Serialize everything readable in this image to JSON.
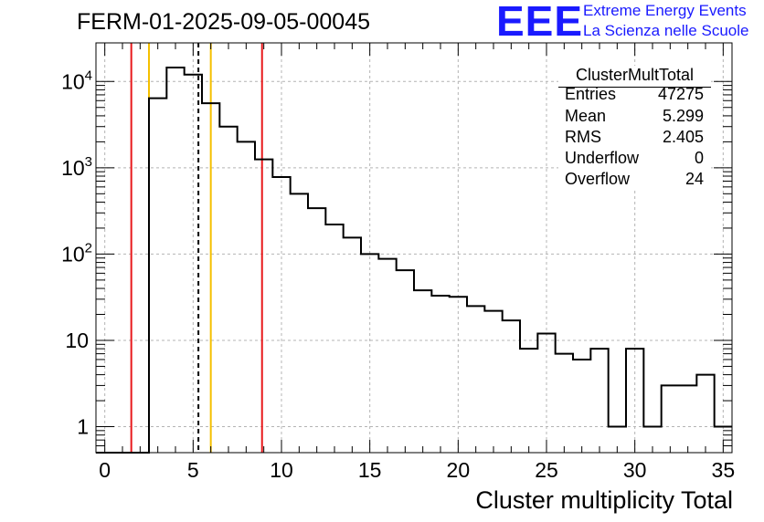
{
  "header": {
    "title": "FERM-01-2025-09-05-00045",
    "logo_text": "EEE",
    "logo_line1": "Extreme Energy Events",
    "logo_line2": "La Scienza nelle Scuole"
  },
  "stats": {
    "name": "ClusterMultTotal",
    "rows": [
      {
        "key": "Entries",
        "value": "47275"
      },
      {
        "key": "Mean",
        "value": "5.299"
      },
      {
        "key": "RMS",
        "value": "2.405"
      },
      {
        "key": "Underflow",
        "value": "0"
      },
      {
        "key": "Overflow",
        "value": "24"
      }
    ]
  },
  "colors": {
    "logo": "#1a1aff",
    "red_line": "#e8191c",
    "yellow_line": "#f5c000",
    "grid": "#b4b4b4"
  },
  "chart_data": {
    "type": "histogram",
    "title": "FERM-01-2025-09-05-00045",
    "xlabel": "Cluster multiplicity Total",
    "ylabel": "",
    "y_scale": "log",
    "xlim": [
      -0.5,
      35.5
    ],
    "ylim": [
      0.5,
      28000
    ],
    "grid": true,
    "x_ticks": [
      0,
      5,
      10,
      15,
      20,
      25,
      30,
      35
    ],
    "y_ticks": [
      {
        "value": 1,
        "label": "1"
      },
      {
        "value": 10,
        "label": "10"
      },
      {
        "value": 100,
        "label": "10",
        "exp": "2"
      },
      {
        "value": 1000,
        "label": "10",
        "exp": "3"
      },
      {
        "value": 10000,
        "label": "10",
        "exp": "4"
      }
    ],
    "bins": [
      {
        "x": 0,
        "count": 0
      },
      {
        "x": 1,
        "count": 0
      },
      {
        "x": 2,
        "count": 0
      },
      {
        "x": 3,
        "count": 6400
      },
      {
        "x": 4,
        "count": 14500
      },
      {
        "x": 5,
        "count": 12000
      },
      {
        "x": 6,
        "count": 5600
      },
      {
        "x": 7,
        "count": 3000
      },
      {
        "x": 8,
        "count": 2000
      },
      {
        "x": 9,
        "count": 1250
      },
      {
        "x": 10,
        "count": 780
      },
      {
        "x": 11,
        "count": 500
      },
      {
        "x": 12,
        "count": 340
      },
      {
        "x": 13,
        "count": 220
      },
      {
        "x": 14,
        "count": 155
      },
      {
        "x": 15,
        "count": 100
      },
      {
        "x": 16,
        "count": 88
      },
      {
        "x": 17,
        "count": 65
      },
      {
        "x": 18,
        "count": 38
      },
      {
        "x": 19,
        "count": 33
      },
      {
        "x": 20,
        "count": 32
      },
      {
        "x": 21,
        "count": 25
      },
      {
        "x": 22,
        "count": 22
      },
      {
        "x": 23,
        "count": 17
      },
      {
        "x": 24,
        "count": 8
      },
      {
        "x": 25,
        "count": 12
      },
      {
        "x": 26,
        "count": 7
      },
      {
        "x": 27,
        "count": 6
      },
      {
        "x": 28,
        "count": 8
      },
      {
        "x": 29,
        "count": 1
      },
      {
        "x": 30,
        "count": 8
      },
      {
        "x": 31,
        "count": 1
      },
      {
        "x": 32,
        "count": 3
      },
      {
        "x": 33,
        "count": 3
      },
      {
        "x": 34,
        "count": 4
      },
      {
        "x": 35,
        "count": 1
      }
    ],
    "vertical_lines": [
      {
        "name": "red-line-left",
        "x": 1.5,
        "color": "#e8191c",
        "style": "solid"
      },
      {
        "name": "yellow-line-left",
        "x": 2.5,
        "color": "#f5c000",
        "style": "solid"
      },
      {
        "name": "mean-line",
        "x": 5.299,
        "color": "#000000",
        "style": "dashed"
      },
      {
        "name": "yellow-line-right",
        "x": 6.0,
        "color": "#f5c000",
        "style": "solid"
      },
      {
        "name": "red-line-right",
        "x": 8.9,
        "color": "#e8191c",
        "style": "solid"
      }
    ]
  }
}
